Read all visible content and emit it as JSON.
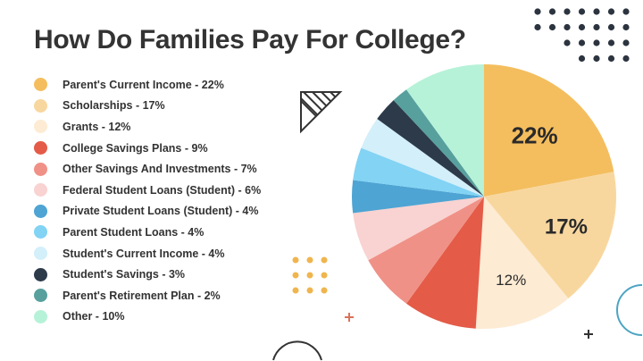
{
  "title": "How Do Families Pay For College?",
  "chart_data": {
    "type": "pie",
    "title": "How Do Families Pay For College?",
    "legend_position": "left",
    "start": "top, clockwise",
    "slices": [
      {
        "label": "Parent's Current Income - 22%",
        "name": "Parent's Current Income",
        "value": 22,
        "color": "#F4BE5E",
        "data_label": "22%"
      },
      {
        "label": "Scholarships - 17%",
        "name": "Scholarships",
        "value": 17,
        "color": "#F8D79F",
        "data_label": "17%"
      },
      {
        "label": "Grants - 12%",
        "name": "Grants",
        "value": 12,
        "color": "#FDEBD3",
        "data_label": "12%"
      },
      {
        "label": "College Savings Plans - 9%",
        "name": "College Savings Plans",
        "value": 9,
        "color": "#E45B47"
      },
      {
        "label": "Other Savings And Investments - 7%",
        "name": "Other Savings And Investments",
        "value": 7,
        "color": "#F09187"
      },
      {
        "label": "Federal Student Loans (Student) - 6%",
        "name": "Federal Student Loans (Student)",
        "value": 6,
        "color": "#F8D3D1"
      },
      {
        "label": "Private Student Loans (Student) - 4%",
        "name": "Private Student Loans (Student)",
        "value": 4,
        "color": "#4EA4D3"
      },
      {
        "label": "Parent Student Loans - 4%",
        "name": "Parent Student Loans",
        "value": 4,
        "color": "#82D3F4"
      },
      {
        "label": "Student's Current Income - 4%",
        "name": "Student's Current Income",
        "value": 4,
        "color": "#D3EFFA"
      },
      {
        "label": "Student's Savings - 3%",
        "name": "Student's Savings",
        "value": 3,
        "color": "#2C3A4A"
      },
      {
        "label": "Parent's Retirement Plan - 2%",
        "name": "Parent's Retirement Plan",
        "value": 2,
        "color": "#57A09E"
      },
      {
        "label": "Other - 10%",
        "name": "Other",
        "value": 10,
        "color": "#B6F2D8"
      }
    ]
  }
}
